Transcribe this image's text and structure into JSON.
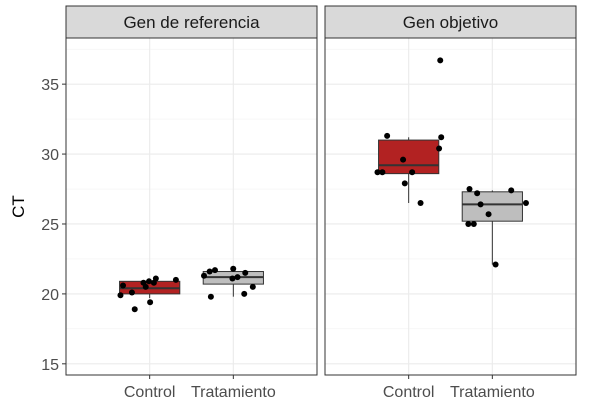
{
  "chart_data": {
    "type": "boxplot",
    "ylabel": "CT",
    "xlabel": "",
    "ylim": [
      14.2,
      38.3
    ],
    "yticks": [
      15,
      20,
      25,
      30,
      35
    ],
    "categories": [
      "Control",
      "Tratamiento"
    ],
    "grid": "on",
    "legend": "none",
    "colors": {
      "Control": "#B22222",
      "Tratamiento": "#BEBEBE"
    },
    "panels": [
      {
        "title": "Gen de referencia",
        "boxes": [
          {
            "category": "Control",
            "q1": 20.0,
            "median": 20.4,
            "q3": 20.9,
            "whisker_low": 19.7,
            "whisker_high": 21.1,
            "points": [
              20.9,
              20.8,
              20.6,
              20.1,
              20.5,
              19.4,
              19.9,
              21.0,
              21.1,
              20.8,
              18.9
            ]
          },
          {
            "category": "Tratamiento",
            "q1": 20.7,
            "median": 21.2,
            "q3": 21.6,
            "whisker_low": 19.8,
            "whisker_high": 21.8,
            "points": [
              20.5,
              20.0,
              21.3,
              21.8,
              21.7,
              21.5,
              21.6,
              21.2,
              21.1,
              19.8
            ]
          }
        ]
      },
      {
        "title": "Gen objetivo",
        "boxes": [
          {
            "category": "Control",
            "q1": 28.6,
            "median": 29.2,
            "q3": 31.0,
            "whisker_low": 26.5,
            "whisker_high": 31.2,
            "points": [
              28.7,
              30.4,
              31.2,
              28.7,
              27.9,
              36.7,
              31.3,
              29.6,
              28.7,
              26.5
            ]
          },
          {
            "category": "Tratamiento",
            "q1": 25.2,
            "median": 26.4,
            "q3": 27.3,
            "whisker_low": 22.1,
            "whisker_high": 27.4,
            "points": [
              27.2,
              27.5,
              26.5,
              25.7,
              25.0,
              22.1,
              26.4,
              25.0,
              27.4
            ]
          }
        ]
      }
    ]
  }
}
